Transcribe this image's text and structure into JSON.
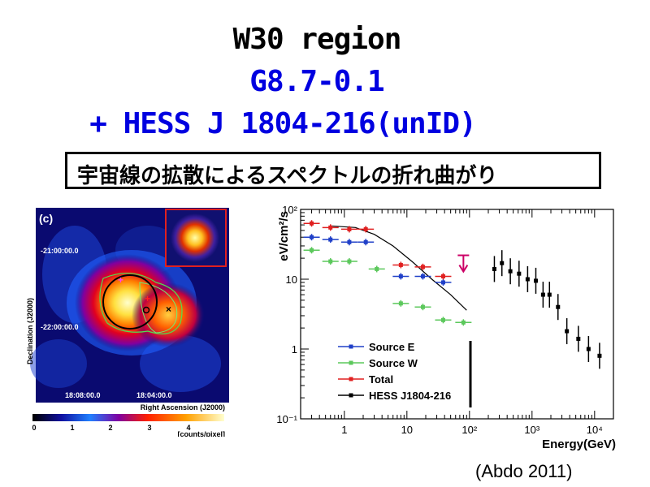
{
  "slide": {
    "title_line1": "W30 region",
    "title_line2": "G8.7-0.1",
    "title_line3": "+ HESS J 1804-216(unID)",
    "banner": "宇宙線の拡散によるスペクトルの折れ曲がり",
    "citation": "(Abdo 2011)"
  },
  "skymap": {
    "panel_label": "(c)",
    "ylabel": "Declination (J2000)",
    "xlabel": "Right Ascension (J2000)",
    "dec_ticks": [
      "-21:00:00.0",
      "-22:00:00.0"
    ],
    "ra_ticks": [
      "18:08:00.0",
      "18:04:00.0"
    ],
    "colorbar_ticks": [
      "0",
      "1",
      "2",
      "3",
      "4"
    ],
    "colorbar_unit": "[counts/pixel]"
  },
  "chart_data": {
    "type": "scatter",
    "xlabel": "Energy(GeV)",
    "ylabel": "eV/cm²/s",
    "xscale": "log",
    "yscale": "log",
    "xlim": [
      0.2,
      20000
    ],
    "ylim": [
      0.1,
      100
    ],
    "x_tick_labels": [
      "1",
      "10",
      "10²",
      "10³",
      "10⁴"
    ],
    "y_tick_labels": [
      "10⁻¹",
      "1",
      "10",
      "10²"
    ],
    "legend_position": "bottom-left",
    "series": [
      {
        "name": "Source E",
        "color": "#2040c8",
        "points": [
          [
            0.3,
            40
          ],
          [
            0.6,
            37
          ],
          [
            1.2,
            34
          ],
          [
            2.2,
            34
          ],
          [
            8,
            11
          ],
          [
            18,
            11
          ],
          [
            38,
            9
          ]
        ]
      },
      {
        "name": "Source W",
        "color": "#5cc85c",
        "points": [
          [
            0.3,
            26
          ],
          [
            0.6,
            18
          ],
          [
            1.2,
            18
          ],
          [
            3.3,
            14
          ],
          [
            8,
            4.5
          ],
          [
            18,
            4.0
          ],
          [
            38,
            2.6
          ],
          [
            80,
            2.4
          ]
        ]
      },
      {
        "name": "Total",
        "color": "#e02020",
        "points": [
          [
            0.3,
            63
          ],
          [
            0.6,
            55
          ],
          [
            1.2,
            52
          ],
          [
            2.2,
            52
          ],
          [
            8,
            16
          ],
          [
            18,
            15
          ],
          [
            38,
            11
          ]
        ]
      },
      {
        "name": "HESS J1804-216",
        "color": "#000000",
        "points": [
          [
            250,
            14
          ],
          [
            330,
            17
          ],
          [
            450,
            13
          ],
          [
            620,
            12
          ],
          [
            850,
            10
          ],
          [
            1150,
            9.5
          ],
          [
            1500,
            6
          ],
          [
            1900,
            6
          ],
          [
            2600,
            4
          ],
          [
            3600,
            1.8
          ],
          [
            5500,
            1.4
          ],
          [
            8000,
            1.0
          ],
          [
            12000,
            0.8
          ]
        ]
      }
    ],
    "upper_limits": [
      {
        "x": 80,
        "y": 22,
        "color": "#cc0066"
      }
    ],
    "model_curve": [
      [
        0.6,
        58
      ],
      [
        1.5,
        55
      ],
      [
        3,
        44
      ],
      [
        6,
        30
      ],
      [
        12,
        18
      ],
      [
        25,
        10
      ],
      [
        50,
        6
      ],
      [
        90,
        3.6
      ]
    ]
  }
}
